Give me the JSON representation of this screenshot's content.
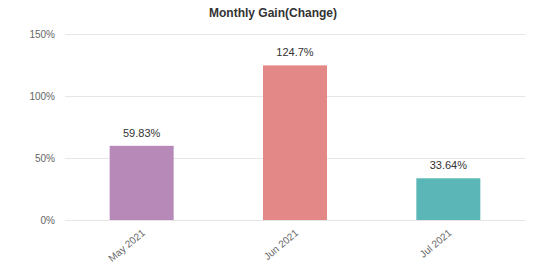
{
  "chart_data": {
    "type": "bar",
    "title": "Monthly Gain(Change)",
    "categories": [
      "May 2021",
      "Jun 2021",
      "Jul 2021"
    ],
    "values": [
      59.83,
      124.7,
      33.64
    ],
    "value_labels": [
      "59.83%",
      "124.7%",
      "33.64%"
    ],
    "colors": [
      "#b789b9",
      "#e38886",
      "#5bb7b7"
    ],
    "ylim": [
      0,
      150
    ],
    "yticks": [
      {
        "value": 0,
        "label": "0%"
      },
      {
        "value": 50,
        "label": "50%"
      },
      {
        "value": 100,
        "label": "100%"
      },
      {
        "value": 150,
        "label": "150%"
      }
    ],
    "grid": true,
    "data_labels": true
  }
}
